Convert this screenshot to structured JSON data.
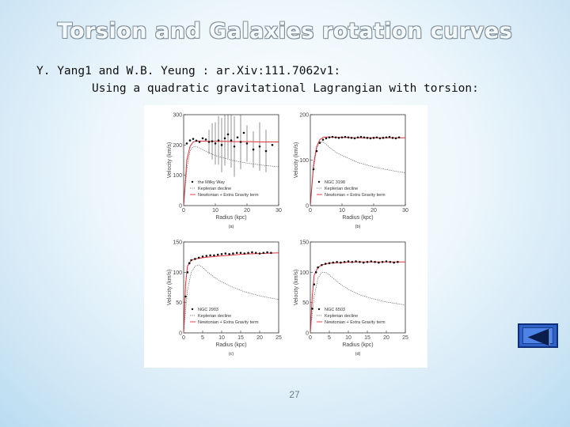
{
  "slide": {
    "title": "Torsion and Galaxies rotation curves",
    "reference": "Y. Yang1 and W.B. Yeung : ar.Xiv:111.7062v1:",
    "subtitle": "Using a quadratic gravitational Lagrangian with torsion:",
    "page_number": "27"
  },
  "nav": {
    "icon": "back-arrow-icon",
    "fill": "#2e62c9",
    "border": "#0f2f78"
  },
  "colors": {
    "model_curve": "#e0303a",
    "kepler_curve": "#555555",
    "data_points": "#111111"
  },
  "chart_data": [
    {
      "type": "scatter",
      "panel_label": "(a)",
      "xlabel": "Radius (kpc)",
      "ylabel": "Velocity (km/s)",
      "xlim": [
        0,
        30
      ],
      "ylim": [
        0,
        300
      ],
      "xticks": [
        "0",
        "10",
        "20",
        "30"
      ],
      "yticks": [
        "0",
        "100",
        "200",
        "300"
      ],
      "legend": [
        "the Milky Way",
        "Keplerian decline",
        "Newtonian + Extra Gravity term"
      ],
      "legend_placement": "bottom-left",
      "data": {
        "x": [
          1,
          2,
          3,
          4,
          5,
          6,
          7,
          8,
          9,
          10,
          11,
          12,
          13,
          14,
          15,
          16,
          17,
          18,
          19,
          20,
          22,
          24,
          26,
          28
        ],
        "y": [
          205,
          215,
          220,
          214,
          210,
          222,
          218,
          210,
          212,
          205,
          215,
          200,
          222,
          235,
          215,
          195,
          225,
          210,
          240,
          205,
          185,
          195,
          180,
          200
        ]
      },
      "error_bars": [
        [
          8,
          40
        ],
        [
          9,
          60
        ],
        [
          10,
          70
        ],
        [
          11,
          80
        ],
        [
          12,
          90
        ],
        [
          13,
          90
        ],
        [
          14,
          80
        ],
        [
          15,
          90
        ],
        [
          16,
          100
        ],
        [
          18,
          90
        ],
        [
          20,
          60
        ],
        [
          22,
          60
        ],
        [
          24,
          80
        ],
        [
          26,
          70
        ]
      ],
      "series": [
        {
          "role": "model",
          "x": [
            0,
            1,
            2,
            3,
            4,
            5,
            8,
            12,
            16,
            20,
            25,
            30
          ],
          "y": [
            0,
            150,
            195,
            210,
            213,
            213,
            212,
            212,
            211,
            211,
            210,
            210
          ]
        },
        {
          "role": "keplerian",
          "x": [
            0,
            1,
            2,
            3,
            4,
            5,
            7,
            10,
            15,
            20,
            25,
            30
          ],
          "y": [
            0,
            120,
            180,
            195,
            195,
            190,
            180,
            165,
            150,
            140,
            133,
            128
          ]
        }
      ]
    },
    {
      "type": "scatter",
      "panel_label": "(b)",
      "xlabel": "Radius (kpc)",
      "ylabel": "Velocity (km/s)",
      "xlim": [
        0,
        30
      ],
      "ylim": [
        0,
        200
      ],
      "xticks": [
        "0",
        "10",
        "20",
        "30"
      ],
      "yticks": [
        "0",
        "100",
        "200"
      ],
      "legend": [
        "NGC 3198",
        "Keplerian decline",
        "Newtonian + Extra Gravity term"
      ],
      "legend_placement": "bottom-left",
      "data": {
        "x": [
          1,
          2,
          3,
          4,
          5,
          6,
          7,
          8,
          9,
          10,
          11,
          12,
          13,
          14,
          15,
          16,
          17,
          18,
          19,
          20,
          21,
          22,
          23,
          24,
          25,
          26,
          27,
          28
        ],
        "y": [
          80,
          120,
          138,
          145,
          148,
          150,
          151,
          150,
          149,
          150,
          151,
          150,
          149,
          148,
          150,
          151,
          150,
          149,
          148,
          149,
          150,
          148,
          149,
          150,
          151,
          149,
          148,
          150
        ]
      },
      "series": [
        {
          "role": "model",
          "x": [
            0,
            1,
            2,
            3,
            4,
            5,
            6,
            8,
            10,
            15,
            20,
            25,
            30
          ],
          "y": [
            0,
            90,
            130,
            145,
            150,
            151,
            151,
            150,
            150,
            149,
            149,
            149,
            149
          ]
        },
        {
          "role": "keplerian",
          "x": [
            0,
            1,
            2,
            3,
            4,
            5,
            6,
            8,
            10,
            15,
            20,
            25,
            30
          ],
          "y": [
            0,
            80,
            125,
            140,
            140,
            135,
            128,
            118,
            110,
            95,
            85,
            78,
            72
          ]
        }
      ]
    },
    {
      "type": "scatter",
      "panel_label": "(c)",
      "xlabel": "Radius (kpc)",
      "ylabel": "Velocity (km/s)",
      "xlim": [
        0,
        25
      ],
      "ylim": [
        0,
        150
      ],
      "xticks": [
        "0",
        "5",
        "10",
        "15",
        "20",
        "25"
      ],
      "yticks": [
        "0",
        "50",
        "100",
        "150"
      ],
      "legend": [
        "NGC 2903",
        "Keplerian decline",
        "Newtonian + Extra Gravity term"
      ],
      "legend_placement": "bottom-left",
      "data": {
        "x": [
          0.5,
          1,
          1.5,
          2,
          3,
          4,
          5,
          6,
          7,
          8,
          9,
          10,
          11,
          12,
          13,
          14,
          15,
          16,
          17,
          18,
          19,
          20,
          21,
          22,
          23
        ],
        "y": [
          60,
          100,
          115,
          120,
          122,
          124,
          126,
          127,
          128,
          128,
          129,
          130,
          131,
          130,
          131,
          132,
          132,
          131,
          132,
          133,
          132,
          131,
          132,
          133,
          132
        ]
      },
      "series": [
        {
          "role": "model",
          "x": [
            0,
            0.5,
            1,
            2,
            3,
            5,
            8,
            12,
            16,
            20,
            25
          ],
          "y": [
            0,
            80,
            110,
            120,
            122,
            124,
            126,
            128,
            130,
            131,
            132
          ]
        },
        {
          "role": "keplerian",
          "x": [
            0,
            1,
            2,
            3,
            4,
            5,
            6,
            8,
            10,
            13,
            16,
            20,
            25
          ],
          "y": [
            0,
            70,
            100,
            110,
            112,
            108,
            102,
            92,
            84,
            75,
            68,
            61,
            55
          ]
        }
      ]
    },
    {
      "type": "scatter",
      "panel_label": "(d)",
      "xlabel": "Radius (kpc)",
      "ylabel": "Velocity (km/s)",
      "xlim": [
        0,
        25
      ],
      "ylim": [
        0,
        150
      ],
      "xticks": [
        "0",
        "5",
        "10",
        "15",
        "20",
        "25"
      ],
      "yticks": [
        "0",
        "50",
        "100",
        "150"
      ],
      "legend": [
        "NGC 6503",
        "Keplerian decline",
        "Newtonian + Extra Gravity term"
      ],
      "legend_placement": "bottom-left",
      "data": {
        "x": [
          0.5,
          1,
          1.5,
          2,
          3,
          4,
          5,
          6,
          7,
          8,
          9,
          10,
          11,
          12,
          13,
          14,
          15,
          16,
          17,
          18,
          19,
          20,
          21,
          22,
          23
        ],
        "y": [
          40,
          80,
          100,
          108,
          112,
          114,
          115,
          116,
          117,
          116,
          117,
          118,
          117,
          118,
          117,
          116,
          117,
          118,
          117,
          116,
          117,
          118,
          117,
          116,
          117
        ]
      },
      "series": [
        {
          "role": "model",
          "x": [
            0,
            0.5,
            1,
            2,
            3,
            5,
            8,
            12,
            16,
            20,
            25
          ],
          "y": [
            0,
            60,
            95,
            108,
            112,
            115,
            116,
            117,
            117,
            117,
            117
          ]
        },
        {
          "role": "keplerian",
          "x": [
            0,
            1,
            2,
            3,
            4,
            5,
            6,
            8,
            10,
            13,
            16,
            20,
            25
          ],
          "y": [
            0,
            60,
            90,
            100,
            100,
            96,
            90,
            80,
            72,
            63,
            57,
            51,
            46
          ]
        }
      ]
    }
  ]
}
